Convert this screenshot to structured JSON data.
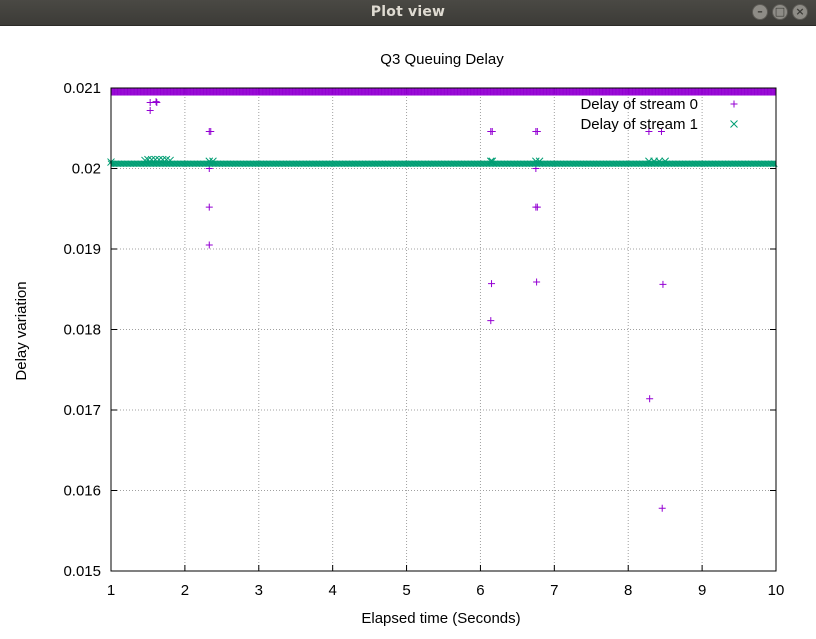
{
  "window": {
    "title": "Plot view",
    "buttons": {
      "minimize": "–",
      "maximize": "□",
      "close": "×"
    }
  },
  "chart_data": {
    "type": "scatter",
    "title": "Q3 Queuing Delay",
    "xlabel": "Elapsed time (Seconds)",
    "ylabel": "Delay variation",
    "xlim": [
      1,
      10
    ],
    "ylim": [
      0.015,
      0.021
    ],
    "xticks": [
      "1",
      "2",
      "3",
      "4",
      "5",
      "6",
      "7",
      "8",
      "9",
      "10"
    ],
    "yticks": [
      "0.015",
      "0.016",
      "0.017",
      "0.018",
      "0.019",
      "0.02",
      "0.021"
    ],
    "grid": true,
    "legend_position": "top-right",
    "series": [
      {
        "name": "Delay of stream 0",
        "marker": "plus",
        "color": "#9400d3",
        "dense_band": {
          "x_start": 1,
          "x_end": 10,
          "y": 0.02095
        },
        "points": [
          [
            1.53,
            0.02082
          ],
          [
            1.53,
            0.02072
          ],
          [
            1.61,
            0.02083
          ],
          [
            1.62,
            0.02082
          ],
          [
            2.33,
            0.02046
          ],
          [
            2.35,
            0.02046
          ],
          [
            2.33,
            0.02
          ],
          [
            2.33,
            0.01952
          ],
          [
            2.33,
            0.01905
          ],
          [
            6.14,
            0.02046
          ],
          [
            6.16,
            0.02046
          ],
          [
            6.15,
            0.01857
          ],
          [
            6.14,
            0.01811
          ],
          [
            6.75,
            0.02046
          ],
          [
            6.77,
            0.02046
          ],
          [
            6.75,
            0.02
          ],
          [
            6.75,
            0.01952
          ],
          [
            6.77,
            0.01952
          ],
          [
            6.76,
            0.01859
          ],
          [
            8.28,
            0.02046
          ],
          [
            8.29,
            0.01714
          ],
          [
            8.45,
            0.02046
          ],
          [
            8.47,
            0.01856
          ],
          [
            8.46,
            0.01578
          ]
        ]
      },
      {
        "name": "Delay of stream 1",
        "marker": "cross",
        "color": "#009e73",
        "dense_band": {
          "x_start": 1,
          "x_end": 10,
          "y": 0.02006
        },
        "points": [
          [
            1.0,
            0.02008
          ],
          [
            1.46,
            0.0201
          ],
          [
            1.5,
            0.02011
          ],
          [
            1.55,
            0.02011
          ],
          [
            1.6,
            0.02011
          ],
          [
            1.65,
            0.02011
          ],
          [
            1.7,
            0.02011
          ],
          [
            1.75,
            0.02011
          ],
          [
            1.8,
            0.0201
          ],
          [
            2.33,
            0.02009
          ],
          [
            2.38,
            0.02009
          ],
          [
            6.14,
            0.02009
          ],
          [
            6.16,
            0.02009
          ],
          [
            6.75,
            0.02009
          ],
          [
            6.8,
            0.02009
          ],
          [
            8.28,
            0.02009
          ],
          [
            8.35,
            0.02009
          ],
          [
            8.42,
            0.02009
          ],
          [
            8.5,
            0.02009
          ]
        ]
      }
    ]
  }
}
